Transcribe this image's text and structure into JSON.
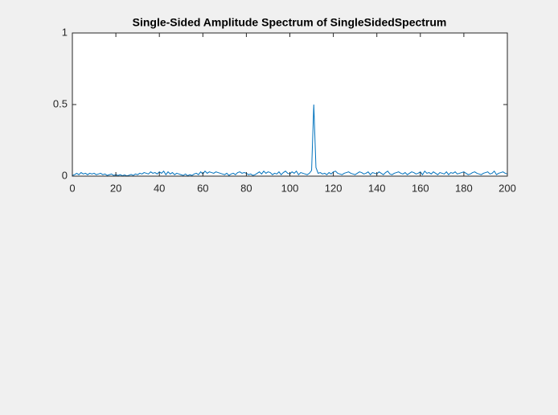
{
  "chart_data": {
    "type": "line",
    "title": "Single-Sided Amplitude Spectrum of SingleSidedSpectrum",
    "color": "#0072bd",
    "xlim": [
      0,
      200
    ],
    "xticks": [
      0,
      20,
      40,
      60,
      80,
      100,
      120,
      140,
      160,
      180,
      200
    ],
    "ylim": [
      0,
      1
    ],
    "yticks": [
      0,
      0.5,
      1
    ],
    "x": [
      0,
      1,
      2,
      3,
      4,
      5,
      6,
      7,
      8,
      9,
      10,
      11,
      12,
      13,
      14,
      15,
      16,
      17,
      18,
      19,
      20,
      21,
      22,
      23,
      24,
      25,
      26,
      27,
      28,
      29,
      30,
      31,
      32,
      33,
      34,
      35,
      36,
      37,
      38,
      39,
      40,
      41,
      42,
      43,
      44,
      45,
      46,
      47,
      48,
      49,
      50,
      51,
      52,
      53,
      54,
      55,
      56,
      57,
      58,
      59,
      60,
      61,
      62,
      63,
      64,
      65,
      66,
      67,
      68,
      69,
      70,
      71,
      72,
      73,
      74,
      75,
      76,
      77,
      78,
      79,
      80,
      81,
      82,
      83,
      84,
      85,
      86,
      87,
      88,
      89,
      90,
      91,
      92,
      93,
      94,
      95,
      96,
      97,
      98,
      99,
      100,
      101,
      102,
      103,
      104,
      105,
      106,
      107,
      108,
      109,
      110,
      111,
      112,
      113,
      114,
      115,
      116,
      117,
      118,
      119,
      120,
      121,
      122,
      123,
      124,
      125,
      126,
      127,
      128,
      129,
      130,
      131,
      132,
      133,
      134,
      135,
      136,
      137,
      138,
      139,
      140,
      141,
      142,
      143,
      144,
      145,
      146,
      147,
      148,
      149,
      150,
      151,
      152,
      153,
      154,
      155,
      156,
      157,
      158,
      159,
      160,
      161,
      162,
      163,
      164,
      165,
      166,
      167,
      168,
      169,
      170,
      171,
      172,
      173,
      174,
      175,
      176,
      177,
      178,
      179,
      180,
      181,
      182,
      183,
      184,
      185,
      186,
      187,
      188,
      189,
      190,
      191,
      192,
      193,
      194,
      195,
      196,
      197,
      198,
      199,
      200
    ],
    "values": [
      0.005,
      0.01,
      0.02,
      0.01,
      0.025,
      0.015,
      0.02,
      0.01,
      0.02,
      0.015,
      0.02,
      0.01,
      0.015,
      0.02,
      0.01,
      0.015,
      0.005,
      0.01,
      0.015,
      0.005,
      0.01,
      0.005,
      0.01,
      0.003,
      0.008,
      0.002,
      0.006,
      0.012,
      0.005,
      0.015,
      0.01,
      0.02,
      0.015,
      0.025,
      0.02,
      0.015,
      0.03,
      0.02,
      0.025,
      0.015,
      0.03,
      0.02,
      0.035,
      0.01,
      0.03,
      0.015,
      0.025,
      0.01,
      0.02,
      0.015,
      0.01,
      0.005,
      0.015,
      0.003,
      0.01,
      0.005,
      0.015,
      0.02,
      0.01,
      0.03,
      0.015,
      0.035,
      0.02,
      0.03,
      0.025,
      0.02,
      0.03,
      0.025,
      0.02,
      0.015,
      0.01,
      0.02,
      0.005,
      0.015,
      0.02,
      0.01,
      0.025,
      0.03,
      0.02,
      0.025,
      0.02,
      0.01,
      0.015,
      0.005,
      0.01,
      0.02,
      0.03,
      0.015,
      0.035,
      0.02,
      0.03,
      0.025,
      0.01,
      0.02,
      0.015,
      0.03,
      0.01,
      0.025,
      0.035,
      0.02,
      0.015,
      0.03,
      0.02,
      0.035,
      0.01,
      0.025,
      0.02,
      0.015,
      0.01,
      0.02,
      0.04,
      0.5,
      0.06,
      0.02,
      0.025,
      0.015,
      0.02,
      0.01,
      0.025,
      0.015,
      0.03,
      0.035,
      0.02,
      0.015,
      0.01,
      0.02,
      0.025,
      0.03,
      0.02,
      0.015,
      0.01,
      0.02,
      0.03,
      0.025,
      0.015,
      0.02,
      0.03,
      0.01,
      0.025,
      0.02,
      0.015,
      0.03,
      0.02,
      0.01,
      0.025,
      0.035,
      0.015,
      0.01,
      0.02,
      0.025,
      0.03,
      0.02,
      0.015,
      0.025,
      0.01,
      0.02,
      0.03,
      0.025,
      0.015,
      0.02,
      0.03,
      0.01,
      0.035,
      0.02,
      0.025,
      0.015,
      0.03,
      0.02,
      0.01,
      0.025,
      0.02,
      0.015,
      0.03,
      0.01,
      0.025,
      0.02,
      0.03,
      0.015,
      0.02,
      0.025,
      0.03,
      0.02,
      0.01,
      0.015,
      0.025,
      0.03,
      0.02,
      0.015,
      0.01,
      0.02,
      0.025,
      0.03,
      0.015,
      0.02,
      0.035,
      0.01,
      0.02,
      0.025,
      0.03,
      0.02,
      0.015
    ]
  }
}
